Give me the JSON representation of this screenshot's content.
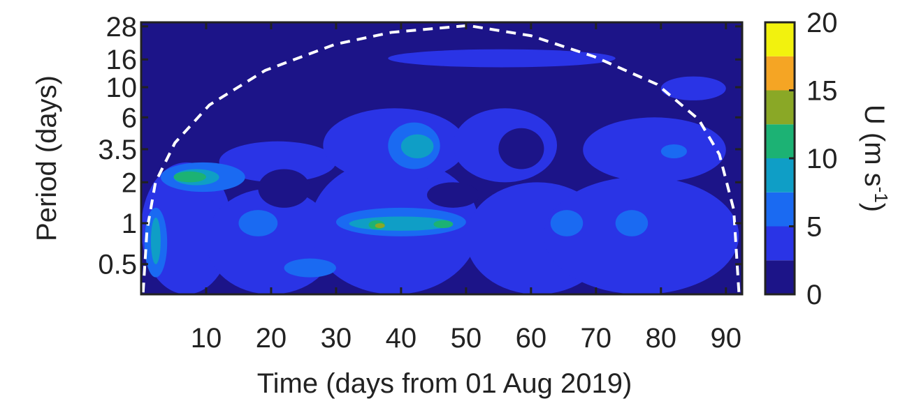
{
  "chart_data": {
    "type": "contour",
    "xlabel": "Time (days from 01 Aug 2019)",
    "ylabel": "Period (days)",
    "xlim": [
      0,
      92.5
    ],
    "xticks": [
      10,
      20,
      30,
      40,
      50,
      60,
      70,
      80,
      90
    ],
    "ylim": [
      0.3,
      30
    ],
    "yticks": [
      0.5,
      1,
      2,
      3.5,
      6,
      10,
      16,
      28
    ],
    "log_y": true,
    "colorbar": {
      "label": [
        "U (m s",
        "-1",
        ")"
      ],
      "clim": [
        0,
        20
      ],
      "ticks": [
        0,
        5,
        10,
        15,
        20
      ],
      "levels": [
        0,
        2.5,
        5,
        7.5,
        10,
        12.5,
        15,
        17.5
      ],
      "colors": [
        "#1c1488",
        "#2a34e6",
        "#1a6af2",
        "#0f9ec6",
        "#1cb274",
        "#8aa826",
        "#f5a524",
        "#f2f20e"
      ]
    },
    "blobs": [
      {
        "level": 2.5,
        "x": [
          0,
          14
        ],
        "period": [
          0.3,
          2.8
        ]
      },
      {
        "level": 2.5,
        "x": [
          10,
          30
        ],
        "period": [
          0.3,
          1.8
        ]
      },
      {
        "level": 2.5,
        "x": [
          12,
          30
        ],
        "period": [
          2,
          4
        ]
      },
      {
        "level": 2.5,
        "x": [
          26,
          52
        ],
        "period": [
          0.3,
          3
        ]
      },
      {
        "level": 2.5,
        "x": [
          28,
          50
        ],
        "period": [
          2,
          7
        ]
      },
      {
        "level": 2.5,
        "x": [
          48,
          64
        ],
        "period": [
          2,
          7
        ]
      },
      {
        "level": 2.5,
        "x": [
          50,
          72
        ],
        "period": [
          0.3,
          2
        ]
      },
      {
        "level": 2.5,
        "x": [
          62,
          92
        ],
        "period": [
          0.3,
          2.2
        ]
      },
      {
        "level": 2.5,
        "x": [
          68,
          90
        ],
        "period": [
          2,
          6
        ]
      },
      {
        "level": 2.5,
        "x": [
          38,
          73
        ],
        "period": [
          14,
          19
        ]
      },
      {
        "level": 2.5,
        "x": [
          80,
          90
        ],
        "period": [
          8,
          12
        ]
      },
      {
        "level": 0,
        "x": [
          18,
          26
        ],
        "period": [
          1.3,
          2.5
        ]
      },
      {
        "level": 0,
        "x": [
          55,
          62
        ],
        "period": [
          2.5,
          5
        ]
      },
      {
        "level": 0,
        "x": [
          44,
          52
        ],
        "period": [
          1.3,
          2
        ]
      },
      {
        "level": 5,
        "x": [
          3,
          16
        ],
        "period": [
          1.7,
          2.8
        ]
      },
      {
        "level": 5,
        "x": [
          0.5,
          4
        ],
        "period": [
          0.4,
          1.3
        ]
      },
      {
        "level": 5,
        "x": [
          15,
          21
        ],
        "period": [
          0.8,
          1.25
        ]
      },
      {
        "level": 5,
        "x": [
          30,
          50
        ],
        "period": [
          0.8,
          1.3
        ]
      },
      {
        "level": 5,
        "x": [
          38,
          46
        ],
        "period": [
          2.5,
          5.5
        ]
      },
      {
        "level": 5,
        "x": [
          63,
          68
        ],
        "period": [
          0.8,
          1.25
        ]
      },
      {
        "level": 5,
        "x": [
          73,
          78
        ],
        "period": [
          0.8,
          1.25
        ]
      },
      {
        "level": 5,
        "x": [
          22,
          30
        ],
        "period": [
          0.4,
          0.55
        ]
      },
      {
        "level": 5,
        "x": [
          80,
          84
        ],
        "period": [
          3,
          3.8
        ]
      },
      {
        "level": 7.5,
        "x": [
          5,
          12
        ],
        "period": [
          1.9,
          2.5
        ]
      },
      {
        "level": 7.5,
        "x": [
          40,
          45
        ],
        "period": [
          3,
          4.5
        ]
      },
      {
        "level": 7.5,
        "x": [
          32,
          48
        ],
        "period": [
          0.88,
          1.12
        ]
      },
      {
        "level": 7.5,
        "x": [
          1.5,
          3
        ],
        "period": [
          0.5,
          1.1
        ]
      },
      {
        "level": 10,
        "x": [
          5,
          10
        ],
        "period": [
          2,
          2.4
        ]
      },
      {
        "level": 10,
        "x": [
          35,
          37.5
        ],
        "period": [
          0.9,
          1.05
        ]
      },
      {
        "level": 10,
        "x": [
          45,
          48
        ],
        "period": [
          0.92,
          1.05
        ]
      },
      {
        "level": 12.5,
        "x": [
          36,
          37.5
        ],
        "period": [
          0.92,
          1.0
        ]
      }
    ],
    "coi": {
      "x": [
        0.3,
        0.9,
        2.2,
        5.2,
        10.5,
        19.1,
        29.9,
        38.5,
        50.3,
        60,
        69.7,
        79.4,
        85.8,
        89,
        91.2,
        92
      ],
      "period": [
        0.31,
        0.89,
        2.0,
        3.9,
        7.4,
        13.3,
        20.7,
        25.3,
        28.4,
        23.9,
        16.8,
        10.5,
        5.8,
        3.2,
        1.26,
        0.31
      ]
    }
  }
}
